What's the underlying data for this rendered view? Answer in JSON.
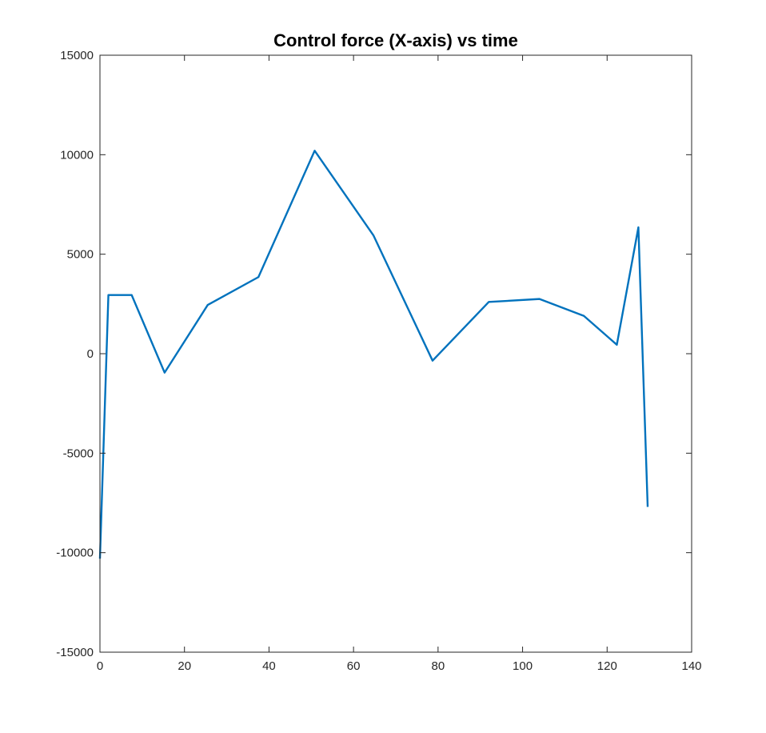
{
  "chart_data": {
    "type": "line",
    "title": "Control force (X-axis) vs time",
    "xlabel": "",
    "ylabel": "",
    "xlim": [
      0,
      140
    ],
    "ylim": [
      -15000,
      15000
    ],
    "x_ticks": [
      0,
      20,
      40,
      60,
      80,
      100,
      120,
      140
    ],
    "y_ticks": [
      -15000,
      -10000,
      -5000,
      0,
      5000,
      10000,
      15000
    ],
    "x_tick_labels": [
      "0",
      "20",
      "40",
      "60",
      "80",
      "100",
      "120",
      "140"
    ],
    "y_tick_labels": [
      "-15000",
      "-10000",
      "-5000",
      "0",
      "5000",
      "10000",
      "15000"
    ],
    "grid": false,
    "box": true,
    "series": [
      {
        "color": "#0072BD",
        "x": [
          0,
          2.0,
          7.5,
          15.3,
          25.5,
          37.5,
          50.8,
          64.7,
          78.7,
          92.0,
          104.0,
          114.5,
          122.3,
          127.4,
          129.6
        ],
        "y": [
          -10300,
          2950,
          2950,
          -950,
          2450,
          3850,
          10200,
          5950,
          -350,
          2600,
          2750,
          1900,
          450,
          6350,
          -7700
        ]
      }
    ]
  }
}
